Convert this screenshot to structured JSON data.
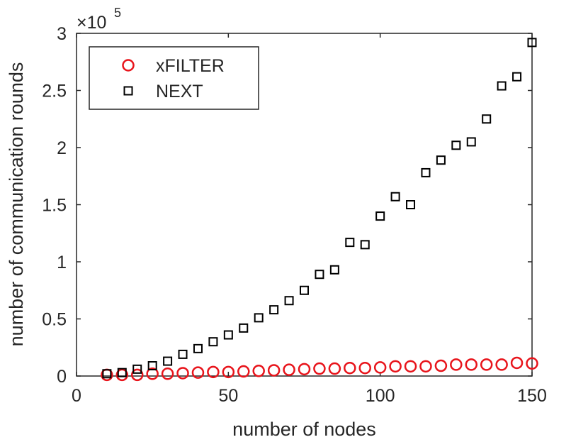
{
  "chart_data": {
    "type": "scatter",
    "xlabel": "number of nodes",
    "ylabel": "number of communication rounds",
    "xlim": [
      0,
      150
    ],
    "ylim": [
      0,
      3
    ],
    "y_multiplier_label": {
      "base": "×10",
      "exponent": "5"
    },
    "xticks": [
      0,
      50,
      100,
      150
    ],
    "xtick_labels": [
      "0",
      "50",
      "100",
      "150"
    ],
    "yticks": [
      0,
      0.5,
      1,
      1.5,
      2,
      2.5,
      3
    ],
    "ytick_labels": [
      "0",
      "0.5",
      "1",
      "1.5",
      "2",
      "2.5",
      "3"
    ],
    "grid": false,
    "legend_position": "top-left",
    "series": [
      {
        "name": "xFILTER",
        "marker": "circle",
        "color": "#e8141b",
        "x": [
          10,
          15,
          20,
          25,
          30,
          35,
          40,
          45,
          50,
          55,
          60,
          65,
          70,
          75,
          80,
          85,
          90,
          95,
          100,
          105,
          110,
          115,
          120,
          125,
          130,
          135,
          140,
          145,
          150
        ],
        "y": [
          0.01,
          0.01,
          0.01,
          0.02,
          0.02,
          0.025,
          0.03,
          0.035,
          0.035,
          0.04,
          0.045,
          0.05,
          0.055,
          0.06,
          0.065,
          0.065,
          0.07,
          0.07,
          0.075,
          0.085,
          0.085,
          0.085,
          0.09,
          0.1,
          0.1,
          0.1,
          0.1,
          0.115,
          0.11
        ]
      },
      {
        "name": "NEXT",
        "marker": "square",
        "color": "#000000",
        "x": [
          10,
          15,
          20,
          25,
          30,
          35,
          40,
          45,
          50,
          55,
          60,
          65,
          70,
          75,
          80,
          85,
          90,
          95,
          100,
          105,
          110,
          115,
          120,
          125,
          130,
          135,
          140,
          145,
          150
        ],
        "y": [
          0.02,
          0.03,
          0.06,
          0.09,
          0.13,
          0.19,
          0.24,
          0.3,
          0.36,
          0.42,
          0.51,
          0.58,
          0.66,
          0.75,
          0.89,
          0.93,
          1.17,
          1.15,
          1.4,
          1.57,
          1.5,
          1.78,
          1.89,
          2.02,
          2.05,
          2.25,
          2.54,
          2.62,
          2.92
        ]
      }
    ]
  }
}
